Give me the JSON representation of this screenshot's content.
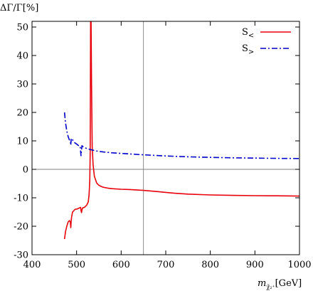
{
  "chart_data": {
    "type": "line",
    "ylabel": "ΔΓ/Γ[%]",
    "xlabel_main": "m",
    "xlabel_sub": "χ̃₂⁺",
    "xlabel_unit": "[GeV]",
    "xlim": [
      400,
      1000
    ],
    "ylim": [
      -30,
      52
    ],
    "xticks": [
      400,
      500,
      600,
      700,
      800,
      900,
      1000
    ],
    "yticks": [
      -30,
      -20,
      -10,
      0,
      10,
      20,
      30,
      40,
      50
    ],
    "vline_x": 650,
    "hline_y": 0,
    "legend_position": "top-right",
    "series": [
      {
        "name": "S<",
        "name_base": "S",
        "name_sub": "<",
        "color": "#e8000b",
        "dash": "solid",
        "x": [
          473,
          475,
          478,
          481,
          484,
          486,
          487,
          488,
          489,
          491,
          494,
          497,
          500,
          503,
          506,
          509,
          510,
          511,
          512,
          514,
          517,
          520,
          523,
          526,
          528,
          529.5,
          530.5,
          531.5,
          532.5,
          533.5,
          535,
          537,
          540,
          545,
          550,
          555,
          560,
          570,
          580,
          600,
          620,
          650,
          680,
          700,
          720,
          750,
          800,
          850,
          900,
          950,
          1000
        ],
        "y": [
          -24.5,
          -22,
          -20,
          -18.5,
          -18,
          -18.6,
          -20.5,
          -18,
          -16.5,
          -15,
          -14.5,
          -14,
          -14,
          -13.8,
          -13.6,
          -13.4,
          -14.5,
          -15.2,
          -14.2,
          -13.5,
          -13.4,
          -13,
          -12.5,
          -11.5,
          -9,
          -4,
          6,
          53,
          53,
          30,
          8,
          1.5,
          -2.5,
          -4.8,
          -5.6,
          -6,
          -6.3,
          -6.6,
          -6.8,
          -7,
          -7.1,
          -7.4,
          -7.8,
          -8.1,
          -8.4,
          -8.7,
          -9.0,
          -9.15,
          -9.25,
          -9.3,
          -9.4
        ]
      },
      {
        "name": "S>",
        "name_base": "S",
        "name_sub": ">",
        "color": "#0000cc",
        "dash": "8,3,2,3",
        "x": [
          473,
          475,
          478,
          481,
          484,
          486,
          487,
          488,
          489,
          491,
          494,
          497,
          500,
          503,
          506,
          508,
          509,
          510,
          511,
          512,
          515,
          520,
          525,
          530,
          540,
          550,
          560,
          580,
          600,
          650,
          700,
          750,
          800,
          850,
          900,
          950,
          1000
        ],
        "y": [
          20,
          16.5,
          13.5,
          11.5,
          10.3,
          9.8,
          8.5,
          10.8,
          10.9,
          10.4,
          9.6,
          9.2,
          8.9,
          8.5,
          8.2,
          8.1,
          6.3,
          4.8,
          6.8,
          8.3,
          7.9,
          7.5,
          7.2,
          7.0,
          6.6,
          6.3,
          6.1,
          5.8,
          5.6,
          5.1,
          4.7,
          4.4,
          4.2,
          4.05,
          3.95,
          3.85,
          3.8
        ]
      }
    ]
  }
}
